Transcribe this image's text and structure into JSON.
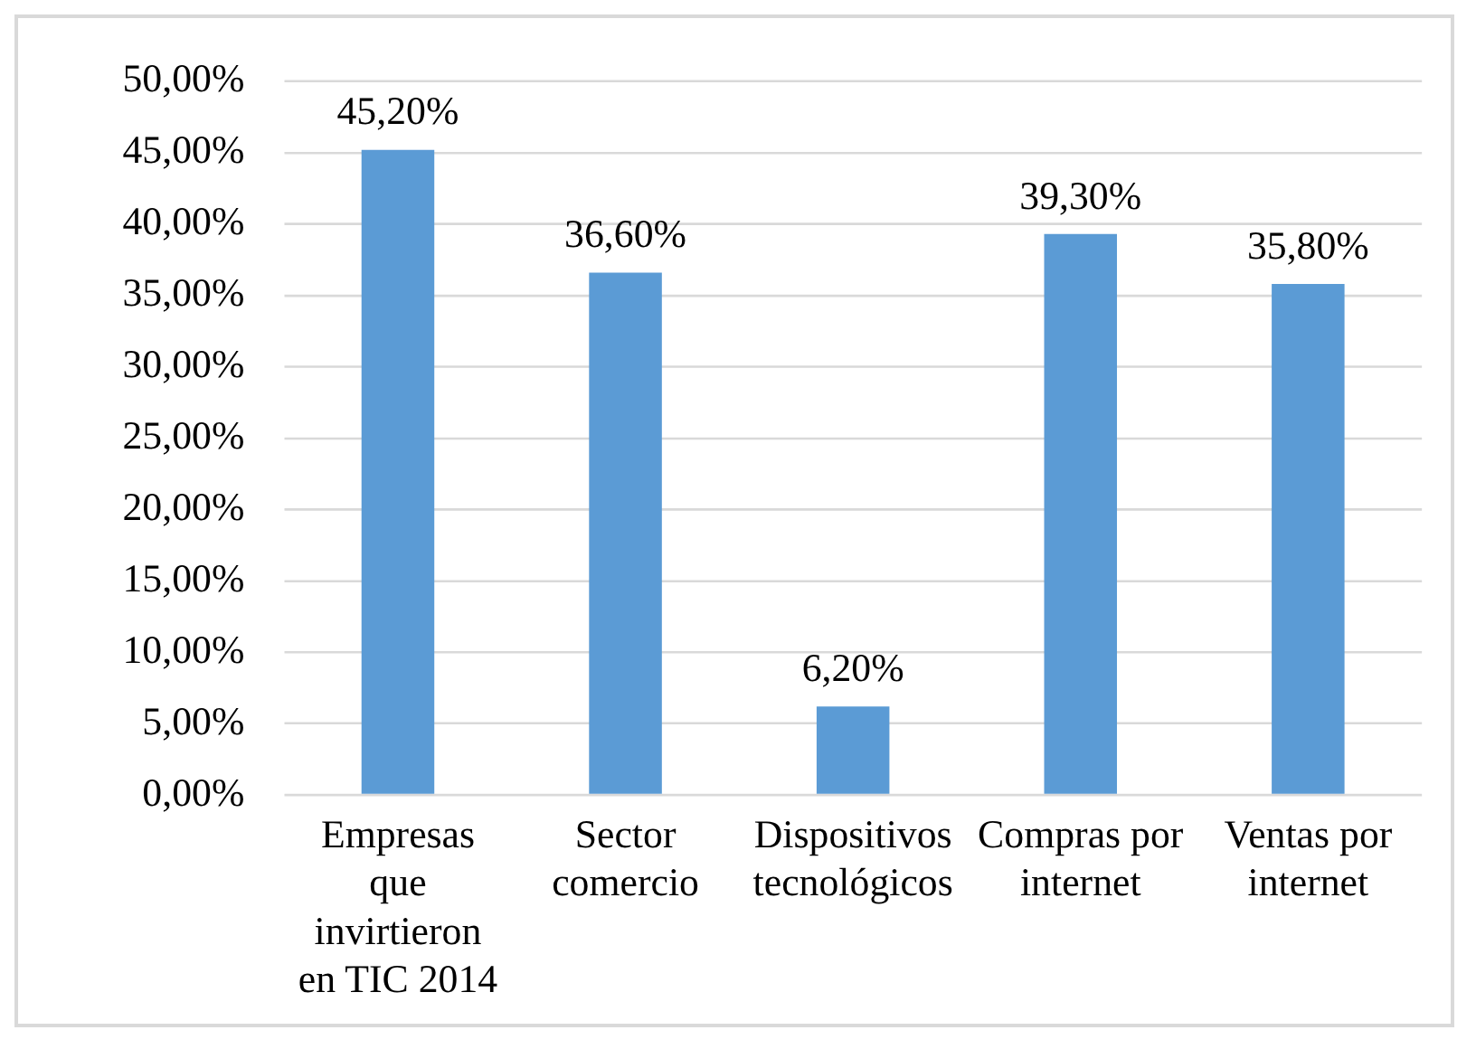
{
  "chart_data": {
    "type": "bar",
    "categories": [
      "Empresas que invirtieron en TIC 2014",
      "Sector comercio",
      "Dispositivos tecnológicos",
      "Compras por internet",
      "Ventas por internet"
    ],
    "values": [
      45.2,
      36.6,
      6.2,
      39.3,
      35.8
    ],
    "value_labels": [
      "45,20%",
      "36,60%",
      "6,20%",
      "39,30%",
      "35,80%"
    ],
    "color": "#5b9bd5",
    "ylim": [
      0,
      50
    ],
    "yticks": [
      {
        "value": 0,
        "label": "0,00%"
      },
      {
        "value": 5,
        "label": "5,00%"
      },
      {
        "value": 10,
        "label": "10,00%"
      },
      {
        "value": 15,
        "label": "15,00%"
      },
      {
        "value": 20,
        "label": "20,00%"
      },
      {
        "value": 25,
        "label": "25,00%"
      },
      {
        "value": 30,
        "label": "30,00%"
      },
      {
        "value": 35,
        "label": "35,00%"
      },
      {
        "value": 40,
        "label": "40,00%"
      },
      {
        "value": 45,
        "label": "45,00%"
      },
      {
        "value": 50,
        "label": "50,00%"
      }
    ],
    "grid": "y"
  }
}
